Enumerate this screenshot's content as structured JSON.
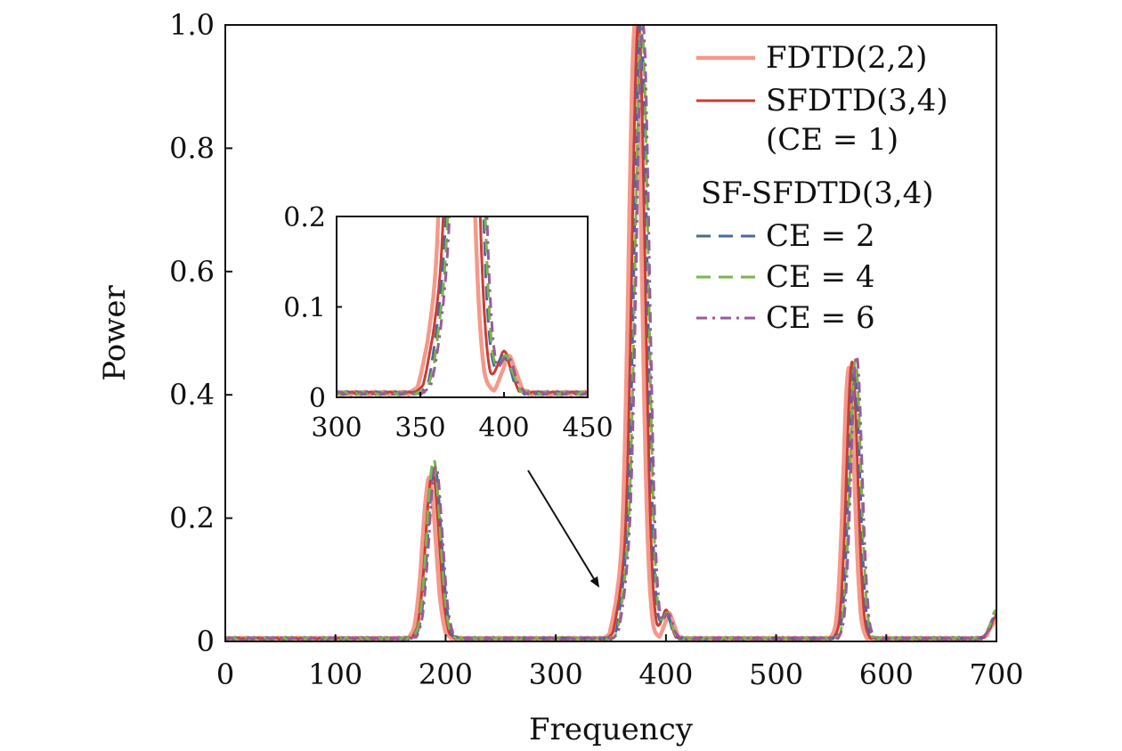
{
  "chart_data": {
    "type": "line",
    "xlabel": "Frequency",
    "ylabel": "Power",
    "xlim": [
      0,
      700
    ],
    "ylim": [
      0,
      1.0
    ],
    "x_ticks": [
      0,
      100,
      200,
      300,
      400,
      500,
      600,
      700
    ],
    "y_ticks": [
      0,
      0.2,
      0.4,
      0.6,
      0.8,
      1.0
    ],
    "y_tick_labels": [
      "0",
      "0.2",
      "0.4",
      "0.6",
      "0.8",
      "1.0"
    ],
    "grid": false,
    "legend": {
      "placement": "top-right",
      "entries": [
        {
          "label": "FDTD(2,2)",
          "series": 0
        },
        {
          "label": "SFDTD(3,4)",
          "series": 1
        },
        {
          "label": "(CE = 1)",
          "series": null
        },
        {
          "label": "SF-SFDTD(3,4)",
          "series": null
        },
        {
          "label": "CE = 2",
          "series": 2
        },
        {
          "label": "CE = 4",
          "series": 3
        },
        {
          "label": "CE = 6",
          "series": 4
        }
      ]
    },
    "series": [
      {
        "name": "FDTD(2,2)",
        "color": "#f4998a",
        "style": "solid",
        "peaks": [
          {
            "center": 185,
            "height": 0.26,
            "width": 6
          },
          {
            "center": 356,
            "height": 0.05,
            "width": 4
          },
          {
            "center": 372,
            "height": 1.0,
            "width": 6
          },
          {
            "center": 403,
            "height": 0.04,
            "width": 4
          },
          {
            "center": 566,
            "height": 0.44,
            "width": 5
          },
          {
            "center": 700,
            "height": 0.03,
            "width": 5
          }
        ]
      },
      {
        "name": "SFDTD(3,4) (CE = 1)",
        "color": "#cc3b33",
        "style": "solid",
        "peaks": [
          {
            "center": 188,
            "height": 0.27,
            "width": 6
          },
          {
            "center": 359,
            "height": 0.055,
            "width": 4
          },
          {
            "center": 375,
            "height": 1.0,
            "width": 6
          },
          {
            "center": 400,
            "height": 0.045,
            "width": 4
          },
          {
            "center": 569,
            "height": 0.45,
            "width": 5
          },
          {
            "center": 700,
            "height": 0.035,
            "width": 5
          }
        ]
      },
      {
        "name": "CE = 2",
        "color": "#4a6a9a",
        "style": "dashed",
        "peaks": [
          {
            "center": 190,
            "height": 0.28,
            "width": 6
          },
          {
            "center": 362,
            "height": 0.065,
            "width": 4
          },
          {
            "center": 377,
            "height": 1.0,
            "width": 6
          },
          {
            "center": 400,
            "height": 0.04,
            "width": 4
          },
          {
            "center": 571,
            "height": 0.44,
            "width": 5
          },
          {
            "center": 700,
            "height": 0.04,
            "width": 5
          }
        ]
      },
      {
        "name": "CE = 4",
        "color": "#7ab648",
        "style": "dashed",
        "peaks": [
          {
            "center": 189,
            "height": 0.29,
            "width": 6
          },
          {
            "center": 363,
            "height": 0.06,
            "width": 4
          },
          {
            "center": 378,
            "height": 1.0,
            "width": 6
          },
          {
            "center": 401,
            "height": 0.04,
            "width": 4
          },
          {
            "center": 572,
            "height": 0.45,
            "width": 5
          },
          {
            "center": 700,
            "height": 0.045,
            "width": 5
          }
        ]
      },
      {
        "name": "CE = 6",
        "color": "#9a5a9a",
        "style": "dashdot",
        "peaks": [
          {
            "center": 191,
            "height": 0.28,
            "width": 6
          },
          {
            "center": 364,
            "height": 0.06,
            "width": 4
          },
          {
            "center": 379,
            "height": 1.0,
            "width": 6
          },
          {
            "center": 402,
            "height": 0.04,
            "width": 4
          },
          {
            "center": 573,
            "height": 0.46,
            "width": 5
          },
          {
            "center": 700,
            "height": 0.04,
            "width": 5
          }
        ]
      }
    ],
    "inset": {
      "xlim": [
        300,
        450
      ],
      "ylim": [
        0,
        0.2
      ],
      "x_ticks": [
        300,
        350,
        400,
        450
      ],
      "y_ticks": [
        0,
        0.1,
        0.2
      ],
      "y_tick_labels": [
        "0",
        "0.1",
        "0.2"
      ]
    },
    "annotation": {
      "type": "arrow",
      "points_to_x": 345,
      "points_to_y": 0.085
    }
  }
}
